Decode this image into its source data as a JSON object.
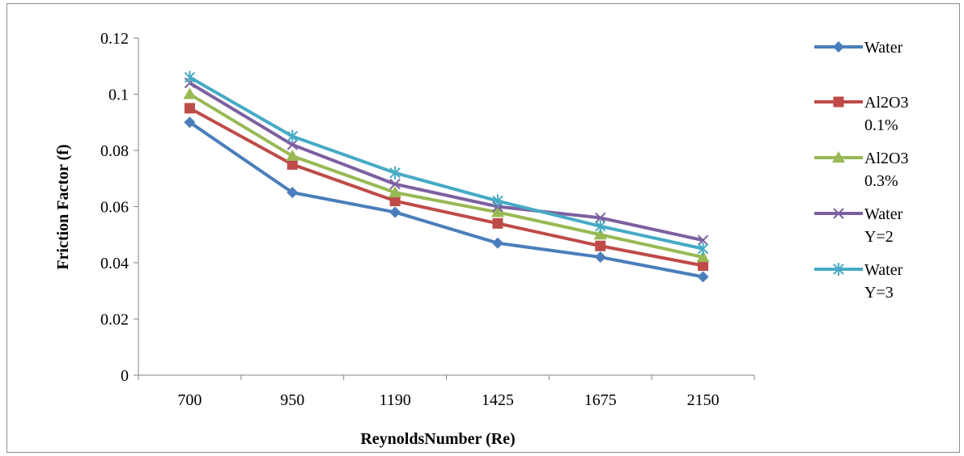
{
  "chart_data": {
    "type": "line",
    "title": "",
    "xlabel": "ReynoldsNumber (Re)",
    "ylabel": "Friction Factor (f)",
    "categories": [
      "700",
      "950",
      "1190",
      "1425",
      "1675",
      "2150"
    ],
    "ylim": [
      0,
      0.12
    ],
    "yticks": [
      "0",
      "0.02",
      "0.04",
      "0.06",
      "0.08",
      "0.1",
      "0.12"
    ],
    "grid": false,
    "legend_position": "right",
    "series": [
      {
        "name": "Water",
        "legend_lines": [
          "Water"
        ],
        "marker": "diamond",
        "color": "#4a7ebb",
        "values": [
          0.09,
          0.065,
          0.058,
          0.047,
          0.042,
          0.035
        ]
      },
      {
        "name": "Al2O3 0.1%",
        "legend_lines": [
          "Al2O3",
          "0.1%"
        ],
        "marker": "square",
        "color": "#be4b48",
        "values": [
          0.095,
          0.075,
          0.062,
          0.054,
          0.046,
          0.039
        ]
      },
      {
        "name": "Al2O3 0.3%",
        "legend_lines": [
          "Al2O3",
          "0.3%"
        ],
        "marker": "triangle",
        "color": "#98b954",
        "values": [
          0.1,
          0.078,
          0.065,
          0.058,
          0.05,
          0.042
        ]
      },
      {
        "name": "Water Y=2",
        "legend_lines": [
          "Water",
          "Y=2"
        ],
        "marker": "x",
        "color": "#7d60a0",
        "values": [
          0.104,
          0.082,
          0.068,
          0.06,
          0.056,
          0.048
        ]
      },
      {
        "name": "Water Y=3",
        "legend_lines": [
          "Water",
          "Y=3"
        ],
        "marker": "star",
        "color": "#46aac5",
        "values": [
          0.106,
          0.085,
          0.072,
          0.062,
          0.053,
          0.045
        ]
      }
    ]
  }
}
